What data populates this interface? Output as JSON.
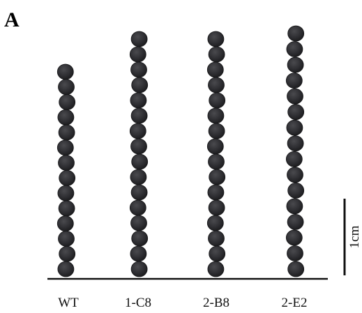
{
  "panel_label": "A",
  "lines": [
    "WT",
    "1-C8",
    "2-B8",
    "2-E2"
  ],
  "scale_bar": "1cm"
}
